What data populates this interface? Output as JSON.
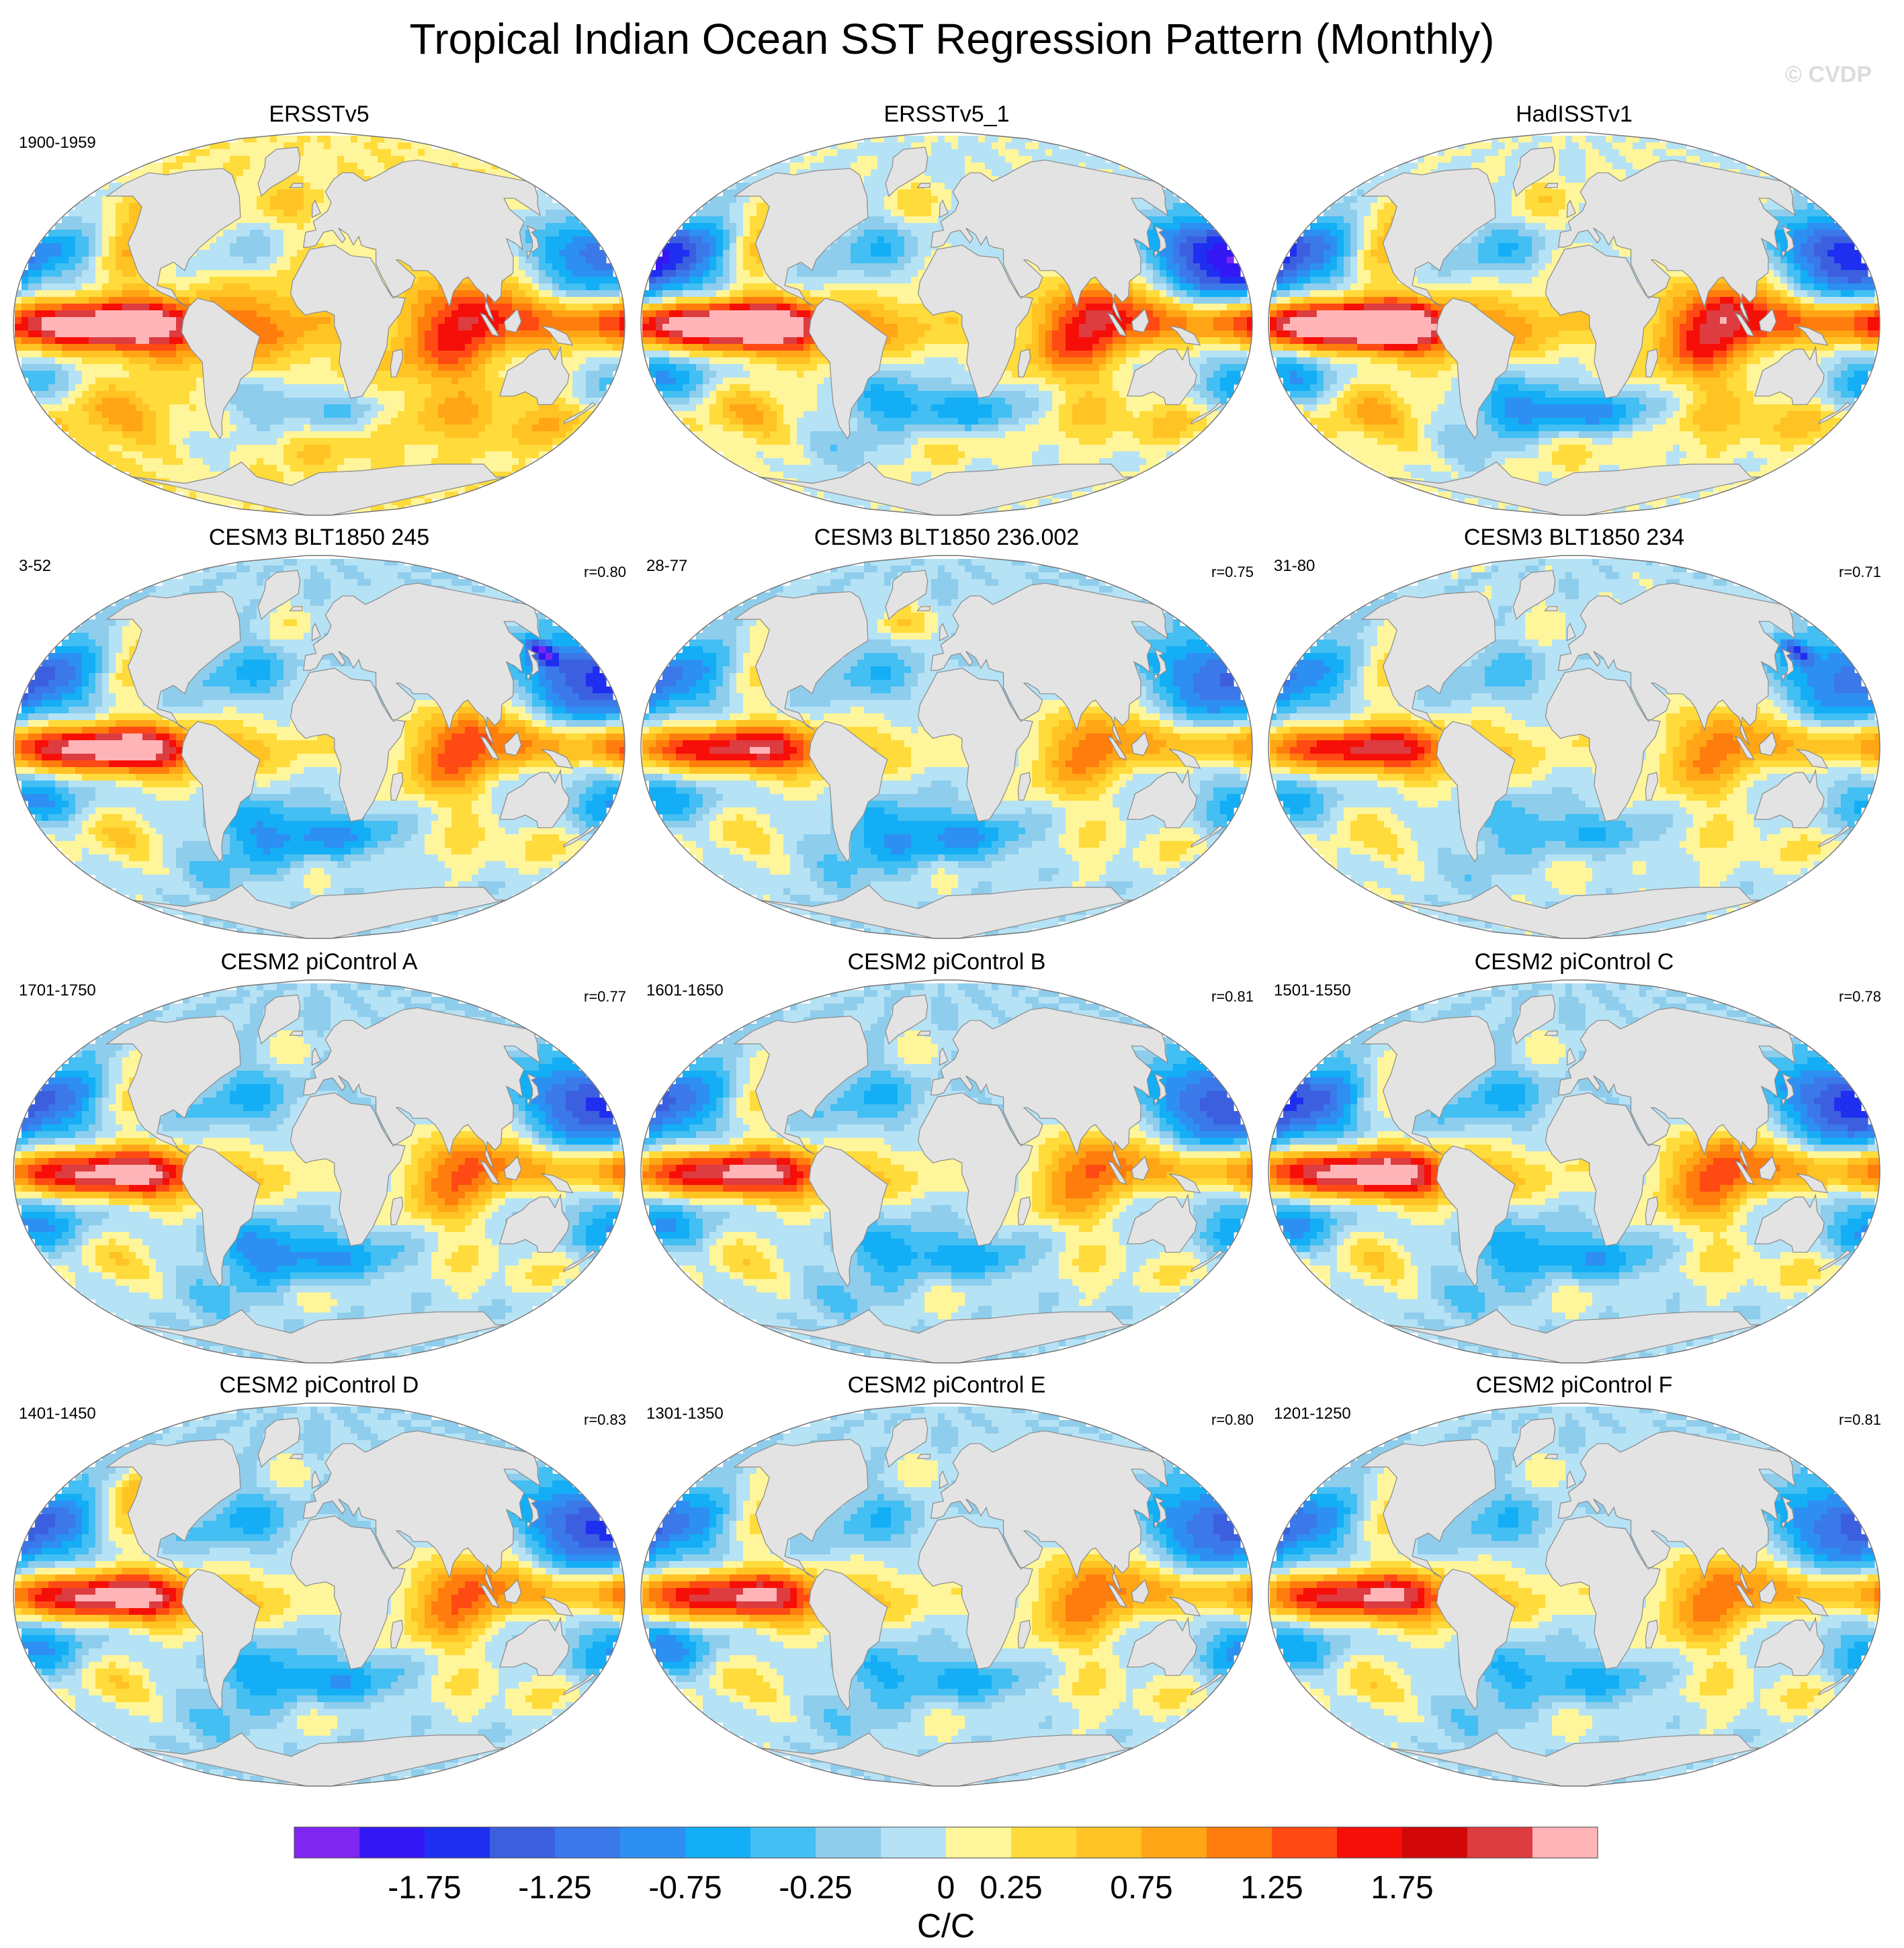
{
  "title": "Tropical Indian Ocean SST Regression Pattern (Monthly)",
  "watermark": "© CVDP",
  "chart_data": {
    "type": "map-grid",
    "title": "Tropical Indian Ocean SST Regression Pattern (Monthly)",
    "projection": "Robinson-like global",
    "land_color": "#e3e3e3",
    "panels": [
      {
        "title": "ERSSTv5",
        "years": "1900-1959",
        "r": ""
      },
      {
        "title": "ERSSTv5_1",
        "years": "",
        "r": ""
      },
      {
        "title": "HadISSTv1",
        "years": "",
        "r": ""
      },
      {
        "title": "CESM3 BLT1850 245",
        "years": "3-52",
        "r": "r=0.80"
      },
      {
        "title": "CESM3 BLT1850 236.002",
        "years": "28-77",
        "r": "r=0.75"
      },
      {
        "title": "CESM3 BLT1850 234",
        "years": "31-80",
        "r": "r=0.71"
      },
      {
        "title": "CESM2 piControl A",
        "years": "1701-1750",
        "r": "r=0.77"
      },
      {
        "title": "CESM2 piControl B",
        "years": "1601-1650",
        "r": "r=0.81"
      },
      {
        "title": "CESM2 piControl C",
        "years": "1501-1550",
        "r": "r=0.78"
      },
      {
        "title": "CESM2 piControl D",
        "years": "1401-1450",
        "r": "r=0.83"
      },
      {
        "title": "CESM2 piControl E",
        "years": "1301-1350",
        "r": "r=0.80"
      },
      {
        "title": "CESM2 piControl F",
        "years": "1201-1250",
        "r": "r=0.81"
      }
    ],
    "colorbar": {
      "label": "C/C",
      "colors": [
        "#7f26f0",
        "#3417f5",
        "#1f2ff0",
        "#3c5fe0",
        "#3b78ea",
        "#2d8ff2",
        "#13aef5",
        "#43bff3",
        "#8fcdec",
        "#b6e2f5",
        "#fff59a",
        "#ffdb3b",
        "#ffc323",
        "#ffa516",
        "#ff7d0c",
        "#ff4a14",
        "#f50f08",
        "#d20808",
        "#dd3c40",
        "#ffb4b7"
      ],
      "tick_labels": [
        "-1.75",
        "-1.25",
        "-0.75",
        "-0.25",
        "0",
        "0.25",
        "0.75",
        "1.25",
        "1.75"
      ]
    }
  }
}
